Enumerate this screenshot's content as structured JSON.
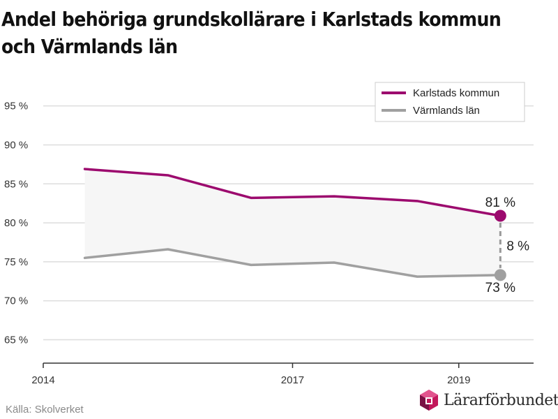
{
  "title": "Andel behöriga grundskollärare i Karlstads kommun och Värmlands län",
  "source": "Källa: Skolverket",
  "logo_text": "Lärarförbundet",
  "colors": {
    "karlstad": "#9c0a6e",
    "varmland": "#a0a0a0",
    "band": "#f6f6f6",
    "grid": "#dddddd",
    "axis": "#333333"
  },
  "chart_data": {
    "type": "line",
    "title": "Andel behöriga grundskollärare i Karlstads kommun och Värmlands län",
    "xlabel": "",
    "ylabel": "",
    "x": [
      2014.5,
      2015.5,
      2016.5,
      2017.5,
      2018.5,
      2019.5
    ],
    "xlim": [
      2014,
      2019.9
    ],
    "ylim": [
      62,
      99
    ],
    "xticks": [
      2014,
      2017,
      2019
    ],
    "xtick_labels": [
      "2014",
      "2017",
      "2019"
    ],
    "yticks": [
      65,
      70,
      75,
      80,
      85,
      90,
      95
    ],
    "ytick_labels": [
      "65 %",
      "70 %",
      "75 %",
      "80 %",
      "85 %",
      "90 %",
      "95 %"
    ],
    "series": [
      {
        "name": "Karlstads kommun",
        "values": [
          86.9,
          86.1,
          83.2,
          83.4,
          82.8,
          80.9
        ]
      },
      {
        "name": "Värmlands län",
        "values": [
          75.5,
          76.6,
          74.6,
          74.9,
          73.1,
          73.3
        ]
      }
    ],
    "annotations": {
      "last_karlstad": "81 %",
      "last_varmland": "73 %",
      "difference": "8 %"
    },
    "legend": "top-right",
    "grid": true
  }
}
